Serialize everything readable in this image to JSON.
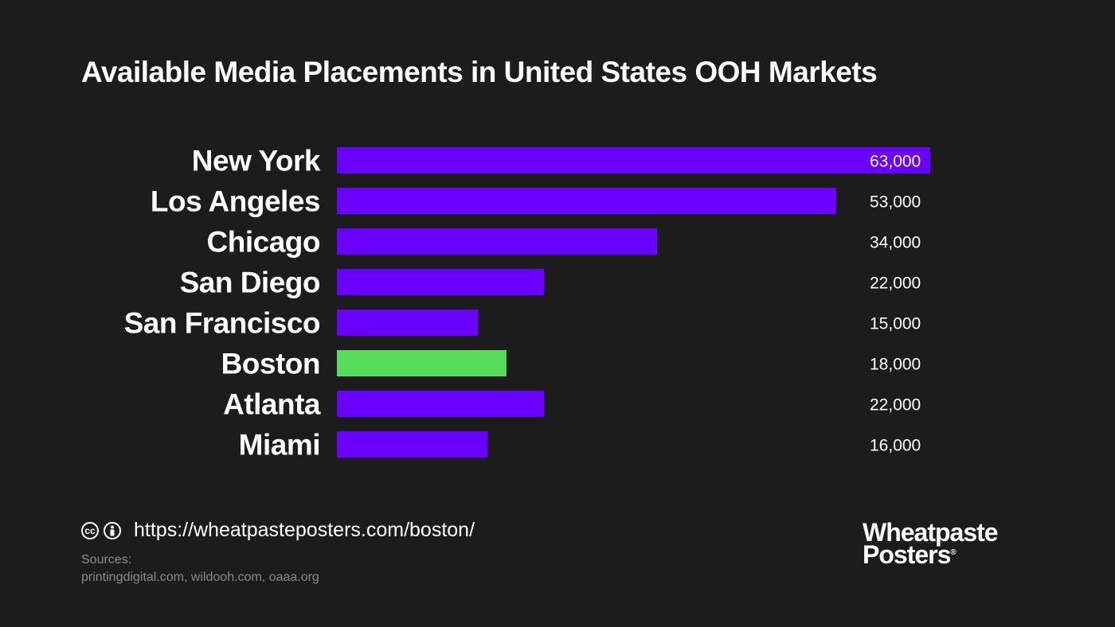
{
  "title": "Available Media Placements in United States OOH Markets",
  "chart_data": {
    "type": "bar",
    "orientation": "horizontal",
    "categories": [
      "New York",
      "Los Angeles",
      "Chicago",
      "San Diego",
      "San Francisco",
      "Boston",
      "Atlanta",
      "Miami"
    ],
    "values": [
      63000,
      53000,
      34000,
      22000,
      15000,
      18000,
      22000,
      16000
    ],
    "value_labels": [
      "63,000",
      "53,000",
      "34,000",
      "22,000",
      "15,000",
      "18,000",
      "22,000",
      "16,000"
    ],
    "highlight_category": "Boston",
    "colors": {
      "bar": "#6a00ff",
      "highlight": "#57dd5a"
    },
    "title": "Available Media Placements in United States OOH Markets",
    "grid": false,
    "legend": "none"
  },
  "footer": {
    "cc_icon": "cc-icon",
    "cc_text": "cc",
    "by_icon": "attribution-person-icon",
    "url": "https://wheatpasteposters.com/boston/",
    "sources_label": "Sources:",
    "sources_list": "printingdigital.com, wildooh.com, oaaa.org"
  },
  "logo": {
    "line1": "Wheatpaste",
    "line2": "Posters",
    "mark": "®"
  }
}
